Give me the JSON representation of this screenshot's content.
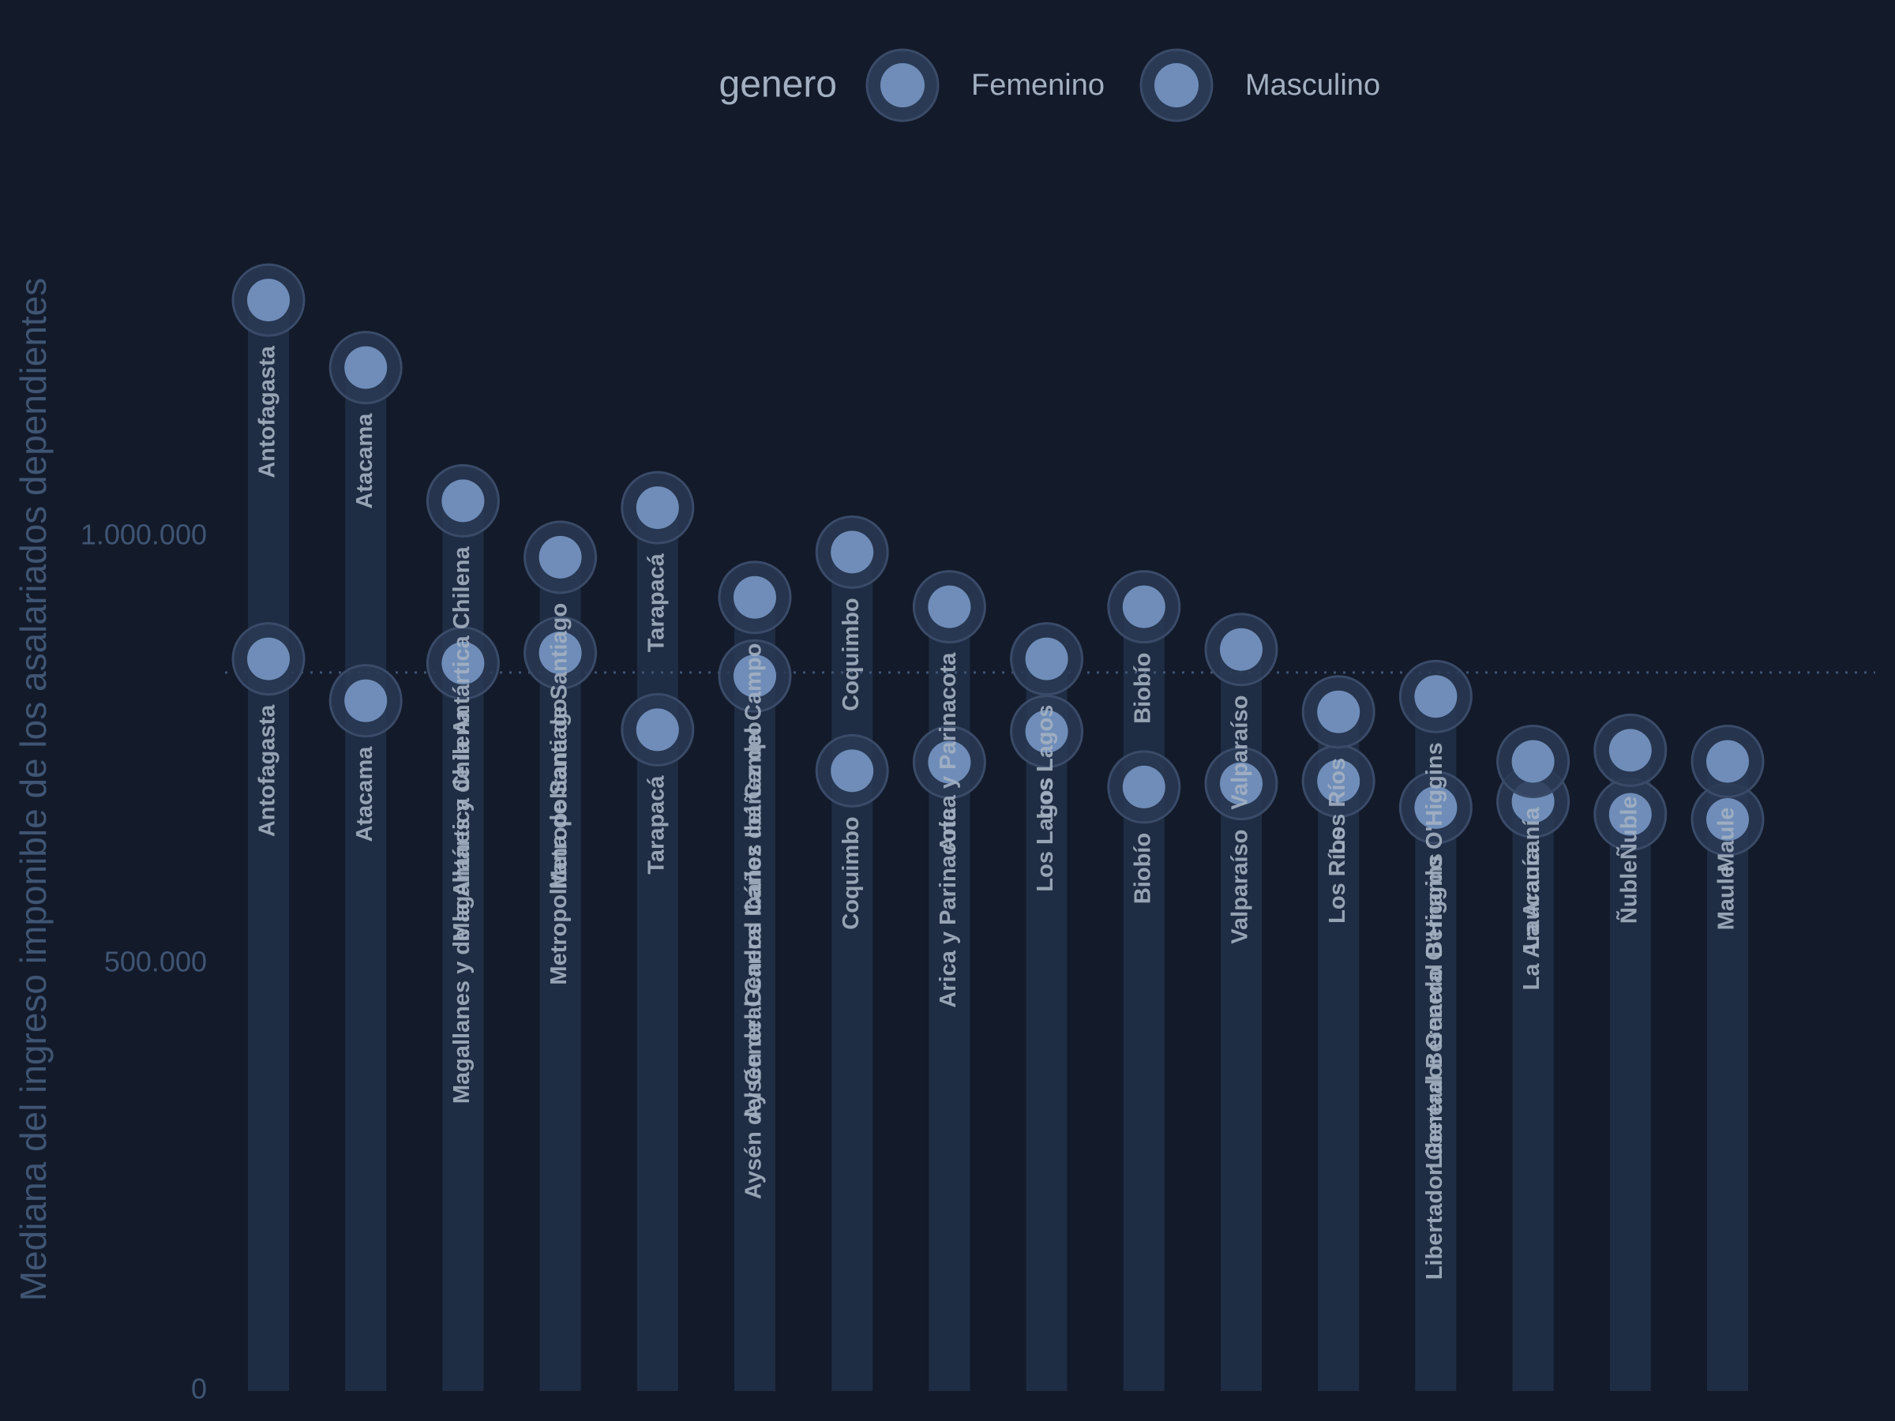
{
  "chart_data": {
    "type": "dot",
    "y_label": "Mediana del ingreso imponible de los asalariados dependientes",
    "legend_title": "genero",
    "categories": [
      "Antofagasta",
      "Atacama",
      "Magallanes y de la Antártica Chilena",
      "Metropolitana de Santiago",
      "Tarapacá",
      "Aysén del General Carlos Ibáñez del Campo",
      "Coquimbo",
      "Arica y Parinacota",
      "Los Lagos",
      "Biobío",
      "Valparaíso",
      "Los Ríos",
      "Libertador General Bernardo O'Higgins",
      "La Araucanía",
      "Ñuble",
      "Maule"
    ],
    "series": [
      {
        "name": "Femenino",
        "color": "#6f8db8",
        "values": [
          857000,
          808000,
          852000,
          864000,
          774000,
          837000,
          726000,
          736000,
          772000,
          707000,
          711000,
          714000,
          683000,
          690000,
          675000,
          669000
        ]
      },
      {
        "name": "Masculino",
        "color": "#6f8db8",
        "values": [
          1277000,
          1198000,
          1042000,
          976000,
          1034000,
          929000,
          982000,
          918000,
          857000,
          918000,
          868000,
          795000,
          813000,
          737000,
          750000,
          737000
        ]
      }
    ],
    "reference_line": 841000,
    "ylim": [
      0,
      1400000
    ],
    "yticks": [
      0,
      {
        "value": 500000,
        "label": "500.000"
      },
      {
        "value": 1000000,
        "label": "1.000.000"
      }
    ]
  }
}
